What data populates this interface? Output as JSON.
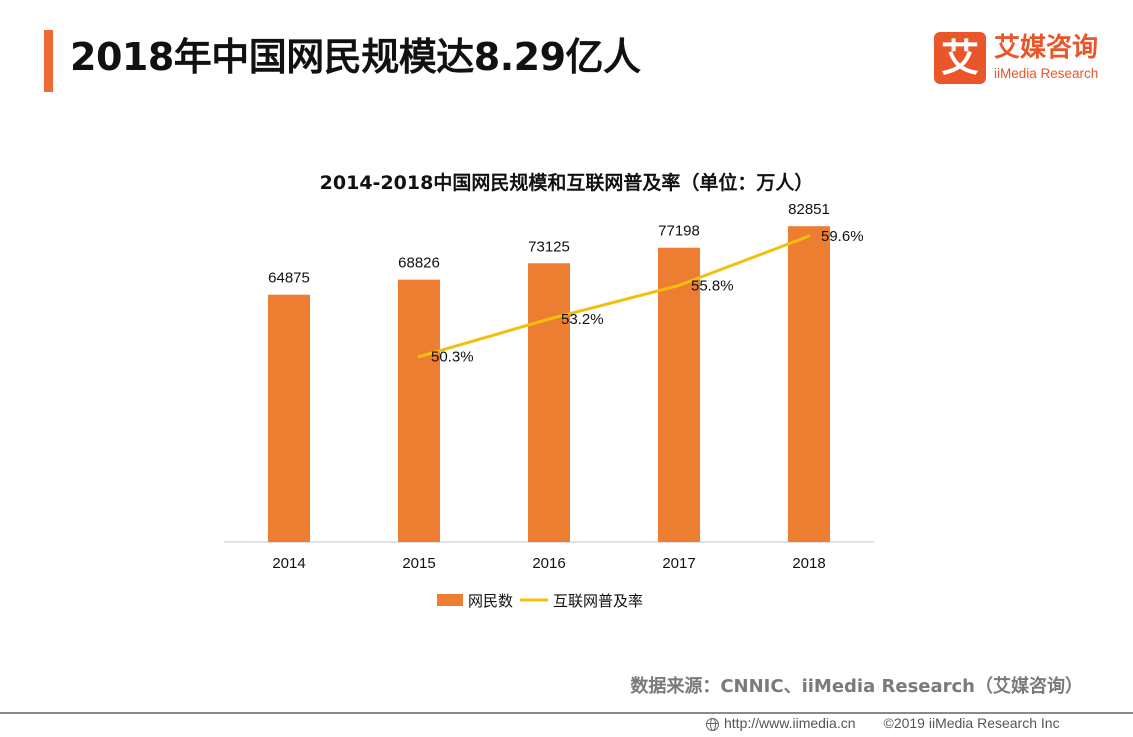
{
  "header": {
    "title": "2018年中国网民规模达8.29亿人"
  },
  "logo": {
    "mark": "艾",
    "name_cn": "艾媒咨询",
    "name_en": "iiMedia Research"
  },
  "colors": {
    "accent": "#f06a35",
    "bar": "#ed7d31",
    "line": "#f2bf0e",
    "axis": "#d9d9d9"
  },
  "chart_data": {
    "type": "bar",
    "title": "2014-2018中国网民规模和互联网普及率（单位：万人）",
    "categories": [
      "2014",
      "2015",
      "2016",
      "2017",
      "2018"
    ],
    "series": [
      {
        "name": "网民数",
        "type": "bar",
        "values": [
          64875,
          68826,
          73125,
          77198,
          82851
        ],
        "labels": [
          "64875",
          "68826",
          "73125",
          "77198",
          "82851"
        ]
      },
      {
        "name": "互联网普及率",
        "type": "line",
        "x": [
          "2015",
          "2016",
          "2017",
          "2018"
        ],
        "values": [
          50.3,
          53.2,
          55.8,
          59.6
        ],
        "labels": [
          "50.3%",
          "53.2%",
          "55.8%",
          "59.6%"
        ]
      }
    ],
    "ylim_bar": [
      0,
      85000
    ],
    "ylim_line": [
      36,
      61
    ],
    "grid": false,
    "legend": "bottom"
  },
  "footer": {
    "source": "数据来源：CNNIC、iiMedia Research（艾媒咨询）",
    "url": "http://www.iimedia.cn",
    "copyright": "©2019  iiMedia Research  Inc"
  }
}
